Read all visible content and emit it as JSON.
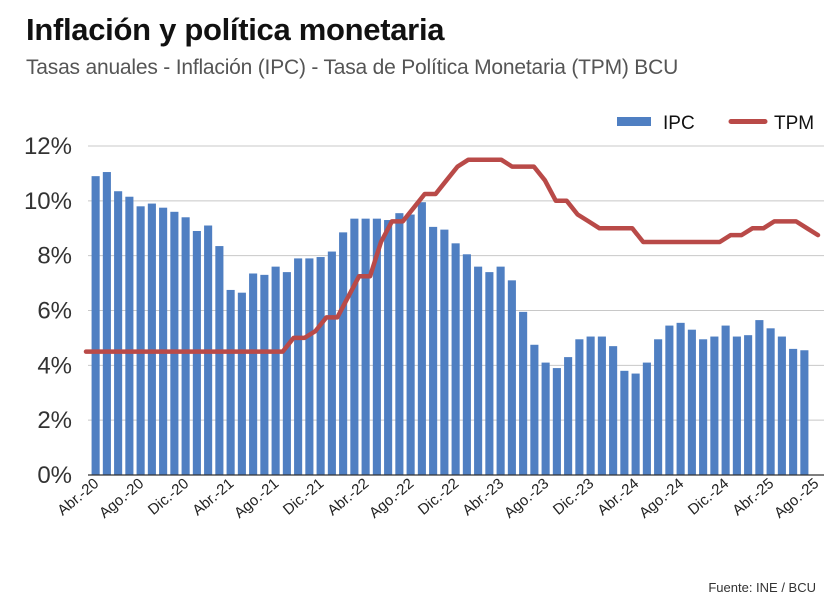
{
  "header": {
    "title": "Inflación y política monetaria",
    "subtitle": "Tasas anuales - Inflación (IPC) - Tasa de Política Monetaria (TPM) BCU"
  },
  "footer": {
    "source": "Fuente: INE / BCU"
  },
  "colors": {
    "ipc": "#4f7fc2",
    "tpm": "#b94a48",
    "grid": "#c8c8c8",
    "axis": "#333333"
  },
  "chart_data": {
    "type": "bar+line",
    "title": "Inflación y política monetaria",
    "ylim": [
      0,
      12
    ],
    "yticks": [
      0,
      2,
      4,
      6,
      8,
      10,
      12
    ],
    "ytick_labels": [
      "0%",
      "2%",
      "4%",
      "6%",
      "8%",
      "10%",
      "12%"
    ],
    "grid": "horizontal",
    "legend": {
      "position": "top-right",
      "entries": [
        "IPC",
        "TPM"
      ]
    },
    "x_ticks": [
      {
        "index": 0,
        "label": "Abr.-20"
      },
      {
        "index": 4,
        "label": "Ago.-20"
      },
      {
        "index": 8,
        "label": "Dic.-20"
      },
      {
        "index": 12,
        "label": "Abr.-21"
      },
      {
        "index": 16,
        "label": "Ago.-21"
      },
      {
        "index": 20,
        "label": "Dic.-21"
      },
      {
        "index": 24,
        "label": "Abr.-22"
      },
      {
        "index": 28,
        "label": "Ago.-22"
      },
      {
        "index": 32,
        "label": "Dic.-22"
      },
      {
        "index": 36,
        "label": "Abr.-23"
      },
      {
        "index": 40,
        "label": "Ago.-23"
      },
      {
        "index": 44,
        "label": "Dic.-23"
      },
      {
        "index": 48,
        "label": "Abr.-24"
      },
      {
        "index": 52,
        "label": "Ago.-24"
      },
      {
        "index": 56,
        "label": "Dic.-24"
      },
      {
        "index": 60,
        "label": "Abr.-25"
      },
      {
        "index": 64,
        "label": "Ago.-25"
      }
    ],
    "series": [
      {
        "name": "IPC",
        "type": "bar",
        "values": [
          10.9,
          11.05,
          10.35,
          10.15,
          9.8,
          9.9,
          9.75,
          9.6,
          9.4,
          8.9,
          9.1,
          8.35,
          6.75,
          6.65,
          7.35,
          7.3,
          7.6,
          7.4,
          7.9,
          7.9,
          7.95,
          8.15,
          8.85,
          9.35,
          9.35,
          9.35,
          9.3,
          9.55,
          9.5,
          9.95,
          9.05,
          8.95,
          8.45,
          8.05,
          7.6,
          7.4,
          7.6,
          7.1,
          5.95,
          4.75,
          4.1,
          3.9,
          4.3,
          4.95,
          5.05,
          5.05,
          4.7,
          3.8,
          3.7,
          4.1,
          4.95,
          5.45,
          5.55,
          5.3,
          4.95,
          5.05,
          5.45,
          5.05,
          5.1,
          5.65,
          5.35,
          5.05,
          4.6,
          4.55
        ]
      },
      {
        "name": "TPM",
        "type": "line",
        "values": [
          4.5,
          4.5,
          4.5,
          4.5,
          4.5,
          4.5,
          4.5,
          4.5,
          4.5,
          4.5,
          4.5,
          4.5,
          4.5,
          4.5,
          4.5,
          4.5,
          4.5,
          4.5,
          4.5,
          5.0,
          5.0,
          5.25,
          5.75,
          5.75,
          6.5,
          7.25,
          7.25,
          8.5,
          9.25,
          9.25,
          9.75,
          10.25,
          10.25,
          10.75,
          11.25,
          11.5,
          11.5,
          11.5,
          11.5,
          11.25,
          11.25,
          11.25,
          10.75,
          10.0,
          10.0,
          9.5,
          9.25,
          9.0,
          9.0,
          9.0,
          9.0,
          8.5,
          8.5,
          8.5,
          8.5,
          8.5,
          8.5,
          8.5,
          8.5,
          8.75,
          8.75,
          9.0,
          9.0,
          9.25,
          9.25,
          9.25,
          9.0,
          8.75
        ]
      }
    ]
  }
}
